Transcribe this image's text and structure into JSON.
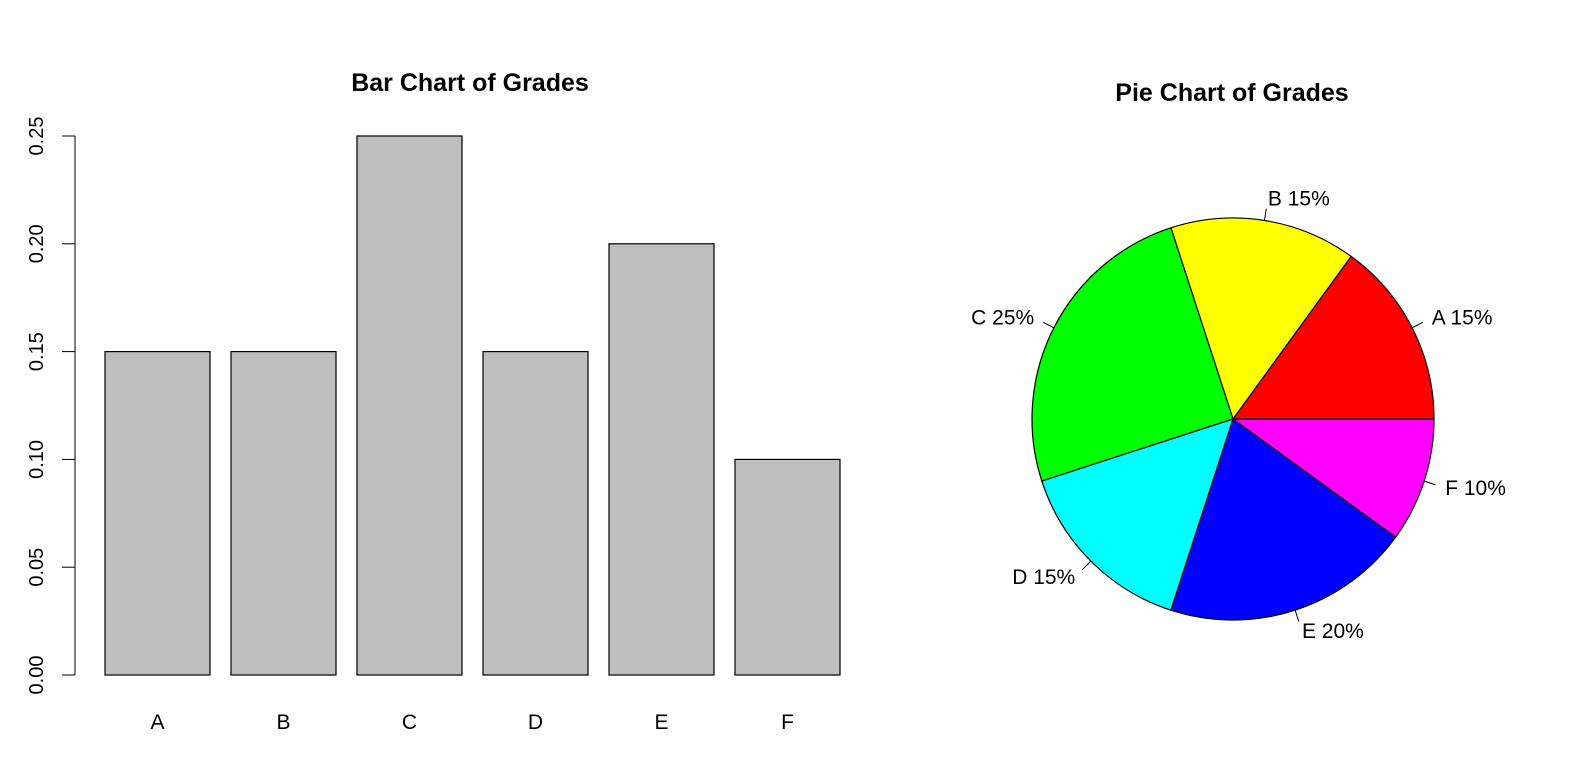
{
  "chart_data": [
    {
      "type": "bar",
      "title": "Bar Chart of Grades",
      "xlabel": "",
      "ylabel": "",
      "categories": [
        "A",
        "B",
        "C",
        "D",
        "E",
        "F"
      ],
      "values": [
        0.15,
        0.15,
        0.25,
        0.15,
        0.2,
        0.1
      ],
      "ylim": [
        0,
        0.25
      ],
      "yticks": [
        0,
        0.05,
        0.1,
        0.15,
        0.2,
        0.25
      ],
      "ytick_labels": [
        "0.00",
        "0.05",
        "0.10",
        "0.15",
        "0.20",
        "0.25"
      ],
      "bar_color": "#bebebe",
      "grid": false
    },
    {
      "type": "pie",
      "title": "Pie Chart of Grades",
      "categories": [
        "A",
        "B",
        "C",
        "D",
        "E",
        "F"
      ],
      "values": [
        0.15,
        0.15,
        0.25,
        0.15,
        0.2,
        0.1
      ],
      "labels": [
        "A 15%",
        "B 15%",
        "C 25%",
        "D 15%",
        "E 20%",
        "F 10%"
      ],
      "colors": [
        "#ff0000",
        "#ffff00",
        "#00ff00",
        "#00ffff",
        "#0000ff",
        "#ff00ff"
      ],
      "direction": "counterclockwise",
      "start": "3 o'clock"
    }
  ]
}
